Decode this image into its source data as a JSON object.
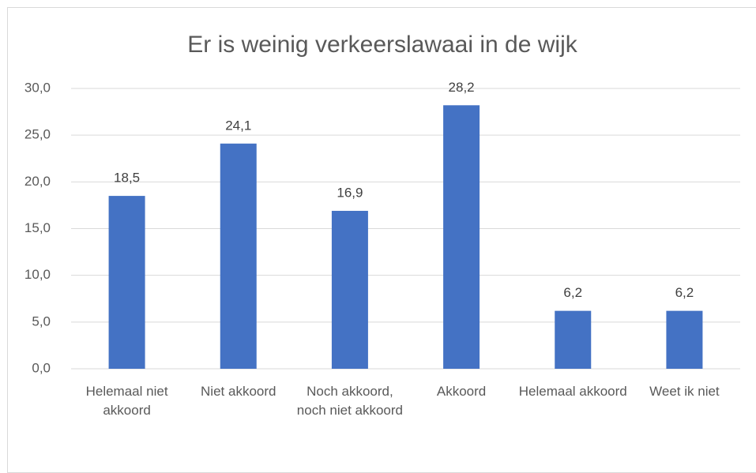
{
  "chart_data": {
    "type": "bar",
    "title": "Er is weinig verkeerslawaai in de wijk",
    "categories": [
      "Helemaal niet akkoord",
      "Niet akkoord",
      "Noch akkoord, noch niet akkoord",
      "Akkoord",
      "Helemaal akkoord",
      "Weet ik niet"
    ],
    "values": [
      18.5,
      24.1,
      16.9,
      28.2,
      6.2,
      6.2
    ],
    "value_labels": [
      "18,5",
      "24,1",
      "16,9",
      "28,2",
      "6,2",
      "6,2"
    ],
    "color": "#4472c4",
    "ylim": [
      0,
      30
    ],
    "yticks": [
      {
        "value": 0,
        "label": "0,0"
      },
      {
        "value": 5,
        "label": "5,0"
      },
      {
        "value": 10,
        "label": "10,0"
      },
      {
        "value": 15,
        "label": "15,0"
      },
      {
        "value": 20,
        "label": "20,0"
      },
      {
        "value": 25,
        "label": "25,0"
      },
      {
        "value": 30,
        "label": "30,0"
      }
    ],
    "grid": true
  }
}
